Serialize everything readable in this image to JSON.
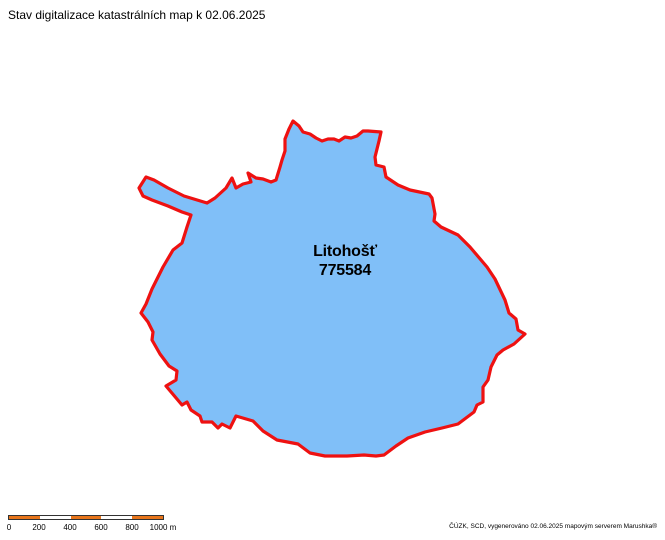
{
  "title": "Stav digitalizace katastrálních map k 02.06.2025",
  "parcel": {
    "name": "Litohošť",
    "code": "775584",
    "fill_color": "#80bff8",
    "border_color": "#ee1111"
  },
  "scale": {
    "labels": [
      "0",
      "200",
      "400",
      "600",
      "800",
      "1000 m"
    ],
    "colors": [
      "#e8751a",
      "#ffffff"
    ]
  },
  "credit": "ČÚZK, SCD, vygenerováno 02.06.2025 mapovým serverem Marushka®"
}
